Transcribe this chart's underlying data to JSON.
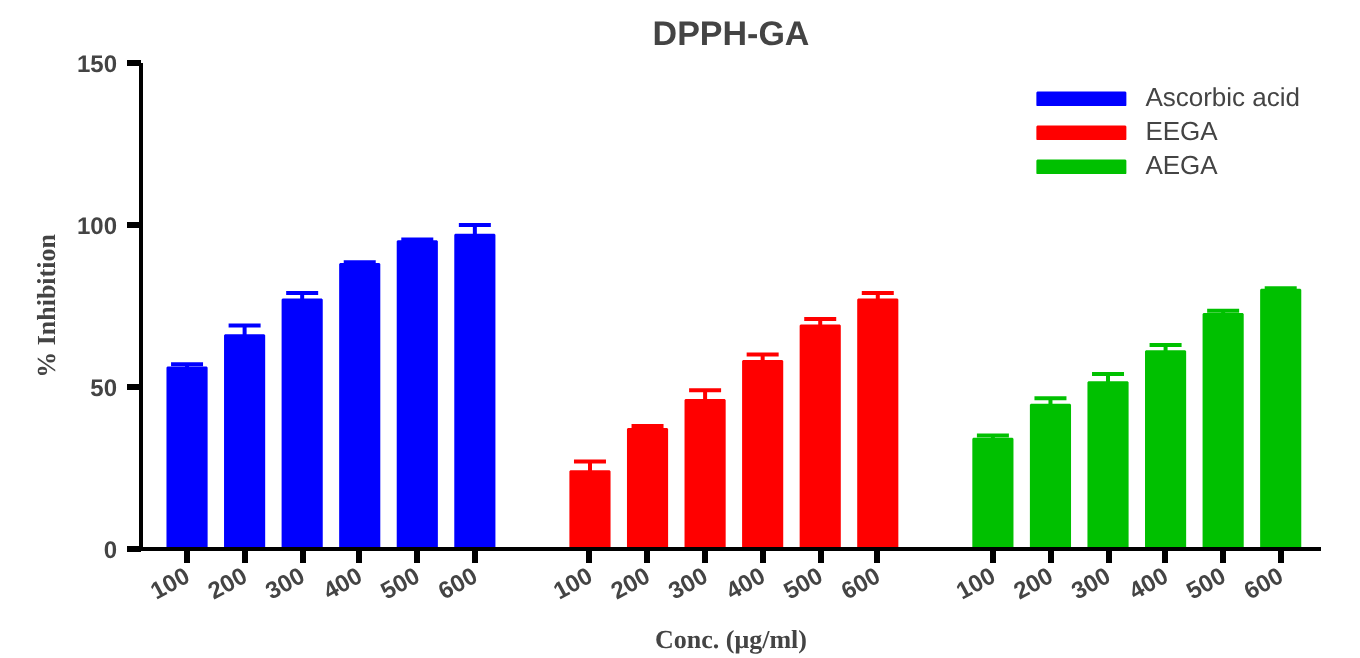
{
  "chart_data": {
    "type": "bar",
    "title": "DPPH-GA",
    "xlabel": "Conc. (μg/ml)",
    "ylabel": "% Inhibition",
    "categories": [
      "100",
      "200",
      "300",
      "400",
      "500",
      "600",
      null,
      "100",
      "200",
      "300",
      "400",
      "500",
      "600",
      null,
      "100",
      "200",
      "300",
      "400",
      "500",
      "600"
    ],
    "series": [
      {
        "name": "Ascorbic acid",
        "color": "#0000ff",
        "values": [
          56,
          66,
          77,
          88,
          95,
          97,
          null,
          null,
          null,
          null,
          null,
          null,
          null,
          null,
          null,
          null,
          null,
          null,
          null,
          null
        ],
        "errors": [
          1,
          3,
          2,
          0.5,
          0.5,
          3,
          null,
          null,
          null,
          null,
          null,
          null,
          null,
          null,
          null,
          null,
          null,
          null,
          null,
          null
        ]
      },
      {
        "name": "EEGA",
        "color": "#ff0000",
        "values": [
          null,
          null,
          null,
          null,
          null,
          null,
          null,
          24,
          37,
          46,
          58,
          69,
          77,
          null,
          null,
          null,
          null,
          null,
          null,
          null
        ],
        "errors": [
          null,
          null,
          null,
          null,
          null,
          null,
          null,
          3,
          1,
          3,
          2,
          2,
          2,
          null,
          null,
          null,
          null,
          null,
          null,
          null
        ]
      },
      {
        "name": "AEGA",
        "color": "#00c000",
        "values": [
          null,
          null,
          null,
          null,
          null,
          null,
          null,
          null,
          null,
          null,
          null,
          null,
          null,
          null,
          34,
          44.5,
          51.5,
          61,
          72.5,
          80
        ],
        "errors": [
          null,
          null,
          null,
          null,
          null,
          null,
          null,
          null,
          null,
          null,
          null,
          null,
          null,
          null,
          1,
          2,
          2.5,
          2,
          1,
          0.5
        ]
      }
    ],
    "ylim": [
      0,
      150
    ],
    "yticks": [
      0,
      50,
      100,
      150
    ],
    "grid": false,
    "legend": "top right"
  }
}
